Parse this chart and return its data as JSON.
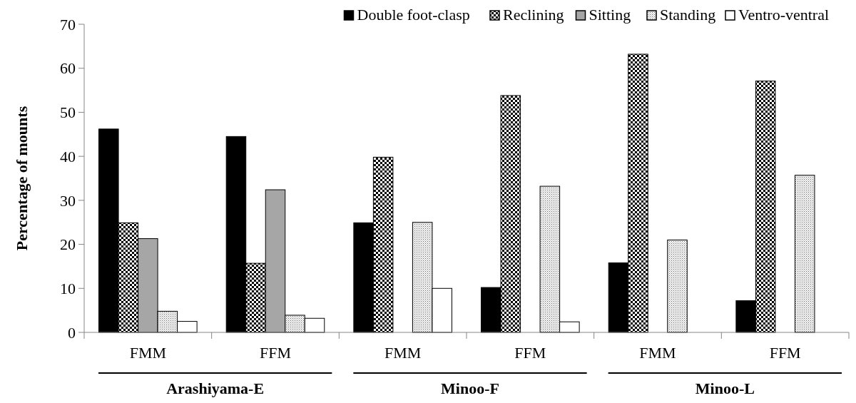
{
  "chart_data": {
    "type": "bar",
    "ylabel": "Percentage of mounts",
    "categories": [
      "FMM",
      "FFM",
      "FMM",
      "FFM",
      "FMM",
      "FFM"
    ],
    "annotations": [
      "Arashiyama-E",
      "Minoo-F",
      "Minoo-L"
    ],
    "series": [
      {
        "name": "Double foot-clasp",
        "color": "#000000",
        "values": [
          46.2,
          44.5,
          24.9,
          10.2,
          15.8,
          7.2
        ]
      },
      {
        "name": "Reclining",
        "color": "#000000",
        "values": [
          24.9,
          15.7,
          39.8,
          53.8,
          63.2,
          57.1
        ]
      },
      {
        "name": "Sitting",
        "color": "#a6a6a6",
        "values": [
          21.3,
          32.4,
          null,
          null,
          null,
          null
        ]
      },
      {
        "name": "Standing",
        "color": "#000000",
        "values": [
          4.8,
          3.9,
          25,
          33.2,
          21,
          35.7
        ]
      },
      {
        "name": "Ventro-ventral",
        "color": "#ffffff",
        "values": [
          2.5,
          3.2,
          10,
          2.4,
          null,
          null
        ]
      }
    ],
    "ylim": [
      0,
      70
    ],
    "yticks": [
      0,
      10,
      20,
      30,
      40,
      50,
      60,
      70
    ],
    "grid": false,
    "legend": "top"
  }
}
